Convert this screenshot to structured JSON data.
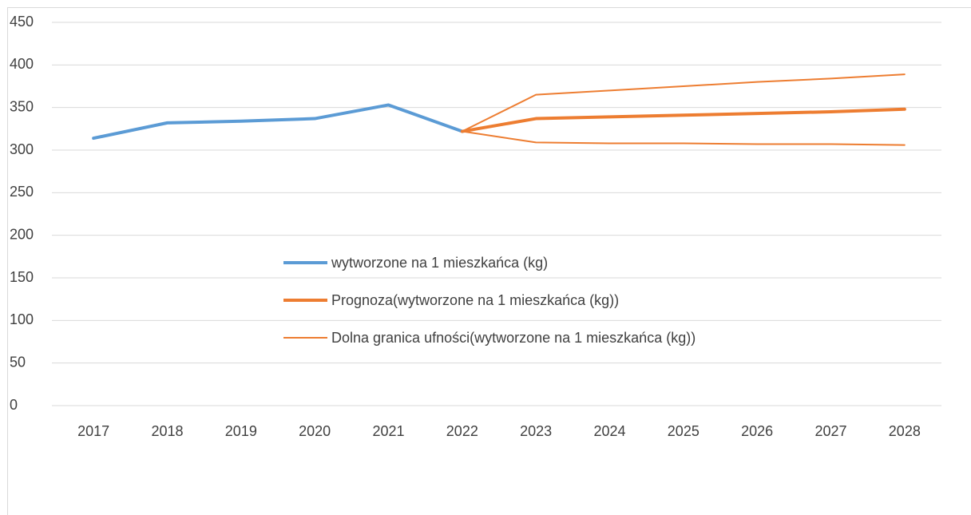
{
  "chart_data": {
    "type": "line",
    "categories": [
      "2017",
      "2018",
      "2019",
      "2020",
      "2021",
      "2022",
      "2023",
      "2024",
      "2025",
      "2026",
      "2027",
      "2028"
    ],
    "series": [
      {
        "name": "wytworzone na 1 mieszkańca (kg)",
        "color": "#5b9bd5",
        "values": [
          314,
          332,
          334,
          337,
          353,
          322,
          null,
          null,
          null,
          null,
          null,
          null
        ]
      },
      {
        "name": "Prognoza(wytworzone na 1 mieszkańca (kg))",
        "color": "#ed7d31",
        "values": [
          null,
          null,
          null,
          null,
          null,
          322,
          337,
          339,
          341,
          343,
          345,
          348
        ]
      },
      {
        "name": "Dolna granica ufności(wytworzone na 1 mieszkańca (kg))",
        "color": "#ed7d31",
        "values": [
          null,
          null,
          null,
          null,
          null,
          322,
          309,
          308,
          308,
          307,
          307,
          306
        ]
      },
      {
        "color": "#ed7d31",
        "values": [
          null,
          null,
          null,
          null,
          null,
          322,
          365,
          370,
          375,
          380,
          384,
          389
        ]
      }
    ],
    "ylim": [
      0,
      450
    ],
    "yticks": [
      0,
      50,
      100,
      150,
      200,
      250,
      300,
      350,
      400,
      450
    ],
    "grid": true
  }
}
